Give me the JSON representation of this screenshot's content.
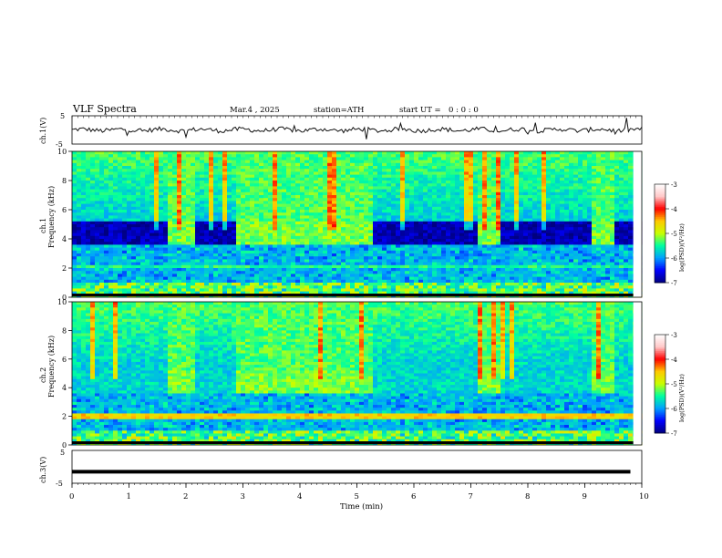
{
  "header": {
    "title": "VLF Spectra",
    "date": "Mar.4 , 2025",
    "station": "station=ATH",
    "start_label": "start UT =",
    "start_time": "0 : 0 : 0"
  },
  "colors": {
    "waveform": "#111111",
    "colormap": [
      "#000080",
      "#0000ff",
      "#00a0ff",
      "#00ffa0",
      "#c8ff00",
      "#ffc800",
      "#ff0000",
      "#ffc8c8",
      "#ffffff"
    ]
  },
  "chart_data": [
    {
      "type": "line",
      "panel": "ch1",
      "ylabel": "ch.1(V)",
      "ylim": [
        -5,
        5
      ],
      "yticks": [
        "5",
        "-5"
      ],
      "approx_level": 0,
      "xlim": [
        0,
        10
      ]
    },
    {
      "type": "heatmap",
      "panel": "ch1-spectrogram",
      "ylabel": "ch.1\nFrequency (kHz)",
      "ylim": [
        0,
        10
      ],
      "yticks": [
        "0",
        "2",
        "4",
        "6",
        "8",
        "10"
      ],
      "xlim": [
        0,
        10
      ],
      "colorbar": {
        "label": "log(PSD)(V²/Hz)",
        "range": [
          -7,
          -3
        ],
        "ticks": [
          "-3",
          "-4",
          "-5",
          "-6",
          "-7"
        ]
      },
      "quiet_band_khz": [
        3.6,
        4.8
      ],
      "bright_band_intervals_min": [
        [
          1.65,
          2.1
        ],
        [
          2.8,
          5.2
        ],
        [
          7.0,
          7.4
        ],
        [
          8.95,
          9.4
        ]
      ]
    },
    {
      "type": "heatmap",
      "panel": "ch2-spectrogram",
      "ylabel": "ch.2\nFrequency (kHz)",
      "ylim": [
        0,
        10
      ],
      "yticks": [
        "0",
        "2",
        "4",
        "6",
        "8",
        "10"
      ],
      "xlim": [
        0,
        10
      ],
      "colorbar": {
        "label": "log(PSD)(V²/Hz)",
        "range": [
          -7,
          -3
        ],
        "ticks": [
          "-3",
          "-4",
          "-5",
          "-6",
          "-7"
        ]
      },
      "bright_band_intervals_min": [
        [
          1.65,
          2.1
        ],
        [
          2.8,
          5.2
        ],
        [
          7.0,
          7.4
        ],
        [
          8.95,
          9.4
        ]
      ]
    },
    {
      "type": "line",
      "panel": "ch3",
      "ylabel": "ch.3(V)",
      "ylim": [
        -5,
        5
      ],
      "yticks": [
        "5",
        "-5"
      ],
      "approx_level": -1.5,
      "xlim": [
        0,
        10
      ],
      "xlabel": "Time (min)",
      "xticks": [
        "0",
        "1",
        "2",
        "3",
        "4",
        "5",
        "6",
        "7",
        "8",
        "9",
        "10"
      ]
    }
  ]
}
